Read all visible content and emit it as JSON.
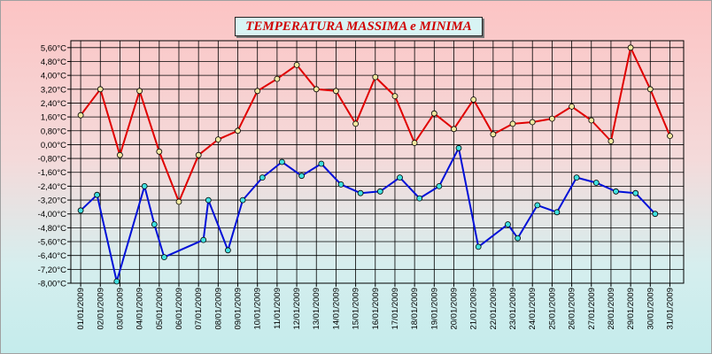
{
  "chart_data": {
    "type": "line",
    "title": "TEMPERATURA MASSIMA e MINIMA",
    "xlabel": "",
    "ylabel": "",
    "ylim": [
      -8.0,
      6.0
    ],
    "y_ticks": [
      "5,60°C",
      "4,80°C",
      "4,00°C",
      "3,20°C",
      "2,40°C",
      "1,60°C",
      "0,80°C",
      "0,00°C",
      "-0,80°C",
      "-1,60°C",
      "-2,40°C",
      "-3,20°C",
      "-4,00°C",
      "-4,80°C",
      "-5,60°C",
      "-6,40°C",
      "-7,20°C",
      "-8,00°C"
    ],
    "x_tick_labels": [
      "01/01/2009",
      "02/01/2009",
      "03/01/2009",
      "04/01/2009",
      "05/01/2009",
      "06/01/2009",
      "07/01/2009",
      "08/01/2009",
      "09/01/2009",
      "10/01/2009",
      "11/01/2009",
      "12/01/2009",
      "13/01/2009",
      "14/01/2009",
      "15/01/2009",
      "16/01/2009",
      "17/01/2009",
      "18/01/2009",
      "19/01/2009",
      "20/01/2009",
      "21/01/2009",
      "22/01/2009",
      "23/01/2009",
      "24/01/2009",
      "25/01/2009",
      "26/01/2009",
      "27/01/2009",
      "28/01/2009",
      "29/01/2009",
      "30/01/2009",
      "31/01/2009"
    ],
    "grid": true,
    "series": [
      {
        "color": "#e00000",
        "marker_fill": "#f2e8a0",
        "points": [
          {
            "x": "01/01/2009",
            "y": 1.7
          },
          {
            "x": "02/01/2009",
            "y": 3.2
          },
          {
            "x": "03/01/2009",
            "y": -0.6
          },
          {
            "x": "04/01/2009",
            "y": 3.1
          },
          {
            "x": "05/01/2009",
            "y": -0.4
          },
          {
            "x": "06/01/2009",
            "y": -3.3
          },
          {
            "x": "07/01/2009",
            "y": -0.6
          },
          {
            "x": "08/01/2009",
            "y": 0.3
          },
          {
            "x": "09/01/2009",
            "y": 0.8
          },
          {
            "x": "10/01/2009",
            "y": 3.1
          },
          {
            "x": "11/01/2009",
            "y": 3.8
          },
          {
            "x": "12/01/2009",
            "y": 4.6
          },
          {
            "x": "13/01/2009",
            "y": 3.2
          },
          {
            "x": "14/01/2009",
            "y": 3.1
          },
          {
            "x": "15/01/2009",
            "y": 1.2
          },
          {
            "x": "16/01/2009",
            "y": 3.9
          },
          {
            "x": "17/01/2009",
            "y": 2.8
          },
          {
            "x": "18/01/2009",
            "y": 0.1
          },
          {
            "x": "19/01/2009",
            "y": 1.8
          },
          {
            "x": "20/01/2009",
            "y": 0.9
          },
          {
            "x": "21/01/2009",
            "y": 2.6
          },
          {
            "x": "22/01/2009",
            "y": 0.6
          },
          {
            "x": "23/01/2009",
            "y": 1.2
          },
          {
            "x": "24/01/2009",
            "y": 1.3
          },
          {
            "x": "25/01/2009",
            "y": 1.5
          },
          {
            "x": "26/01/2009",
            "y": 2.2
          },
          {
            "x": "27/01/2009",
            "y": 1.4
          },
          {
            "x": "28/01/2009",
            "y": 0.2
          },
          {
            "x": "29/01/2009",
            "y": 5.6
          },
          {
            "x": "30/01/2009",
            "y": 3.2
          },
          {
            "x": "31/01/2009",
            "y": 0.5
          }
        ]
      },
      {
        "color": "#0010d8",
        "marker_fill": "#40e0e0",
        "points": [
          {
            "x": "01/01/2009",
            "y": -3.8
          },
          {
            "x": "01/01/2009 20:00",
            "y": -2.9
          },
          {
            "x": "02/01/2009 20:00",
            "y": -7.9
          },
          {
            "x": "04/01/2009 06:00",
            "y": -2.4
          },
          {
            "x": "04/01/2009 18:00",
            "y": -4.6
          },
          {
            "x": "05/01/2009 06:00",
            "y": -6.5
          },
          {
            "x": "07/01/2009 06:00",
            "y": -5.5
          },
          {
            "x": "07/01/2009 12:00",
            "y": -3.2
          },
          {
            "x": "08/01/2009 12:00",
            "y": -6.1
          },
          {
            "x": "09/01/2009 06:00",
            "y": -3.2
          },
          {
            "x": "10/01/2009 06:00",
            "y": -1.9
          },
          {
            "x": "11/01/2009 06:00",
            "y": -1.0
          },
          {
            "x": "12/01/2009 06:00",
            "y": -1.8
          },
          {
            "x": "13/01/2009 06:00",
            "y": -1.1
          },
          {
            "x": "14/01/2009 06:00",
            "y": -2.3
          },
          {
            "x": "15/01/2009 06:00",
            "y": -2.8
          },
          {
            "x": "16/01/2009 06:00",
            "y": -2.7
          },
          {
            "x": "17/01/2009 06:00",
            "y": -1.9
          },
          {
            "x": "18/01/2009 06:00",
            "y": -3.1
          },
          {
            "x": "19/01/2009 06:00",
            "y": -2.4
          },
          {
            "x": "20/01/2009 06:00",
            "y": -0.2
          },
          {
            "x": "21/01/2009 06:00",
            "y": -5.9
          },
          {
            "x": "22/01/2009 18:00",
            "y": -4.6
          },
          {
            "x": "23/01/2009 06:00",
            "y": -5.4
          },
          {
            "x": "24/01/2009 06:00",
            "y": -3.5
          },
          {
            "x": "25/01/2009 06:00",
            "y": -3.9
          },
          {
            "x": "26/01/2009 06:00",
            "y": -1.9
          },
          {
            "x": "27/01/2009 06:00",
            "y": -2.2
          },
          {
            "x": "28/01/2009 06:00",
            "y": -2.7
          },
          {
            "x": "29/01/2009 06:00",
            "y": -2.8
          },
          {
            "x": "30/01/2009 06:00",
            "y": -4.0
          }
        ]
      }
    ]
  }
}
